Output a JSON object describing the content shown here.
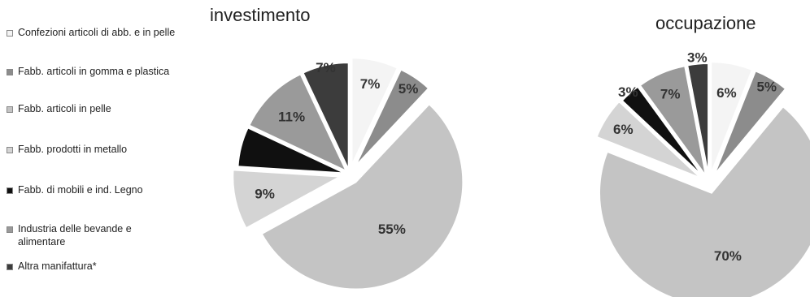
{
  "legend": {
    "items": [
      {
        "label": "Confezioni articoli di abb. e in pelle",
        "color": "#f4f4f4"
      },
      {
        "label": "Fabb. articoli in gomma e plastica",
        "color": "#8c8c8c"
      },
      {
        "label": "Fabb. articoli in pelle",
        "color": "#c4c4c4"
      },
      {
        "label": "Fabb. prodotti in metallo",
        "color": "#d4d4d4"
      },
      {
        "label": "Fabb. di mobili e ind. Legno",
        "color": "#101010"
      },
      {
        "label": "Industria delle bevande e alimentare",
        "color": "#9a9a9a"
      },
      {
        "label": "Altra manifattura*",
        "color": "#3c3c3c"
      }
    ]
  },
  "chart_data": [
    {
      "type": "pie",
      "title": "investimento",
      "categories": [
        "Confezioni articoli di abb. e in pelle",
        "Fabb. articoli in gomma e plastica",
        "Fabb. articoli in pelle",
        "Fabb. prodotti in metallo",
        "Fabb. di mobili e ind. Legno",
        "Industria delle bevande e alimentare",
        "Altra manifattura*"
      ],
      "values": [
        7,
        5,
        55,
        9,
        6,
        11,
        7
      ],
      "data_labels": [
        "7%",
        "5%",
        "55%",
        "9%",
        "",
        "11%",
        "7%"
      ]
    },
    {
      "type": "pie",
      "title": "occupazione",
      "categories": [
        "Confezioni articoli di abb. e in pelle",
        "Fabb. articoli in gomma e plastica",
        "Fabb. articoli in pelle",
        "Fabb. prodotti in metallo",
        "Fabb. di mobili e ind. Legno",
        "Industria delle bevande e alimentare",
        "Altra manifattura*"
      ],
      "values": [
        6,
        5,
        70,
        6,
        3,
        7,
        3
      ],
      "data_labels": [
        "6%",
        "5%",
        "70%",
        "6%",
        "3%",
        "7%",
        "3%"
      ]
    }
  ]
}
